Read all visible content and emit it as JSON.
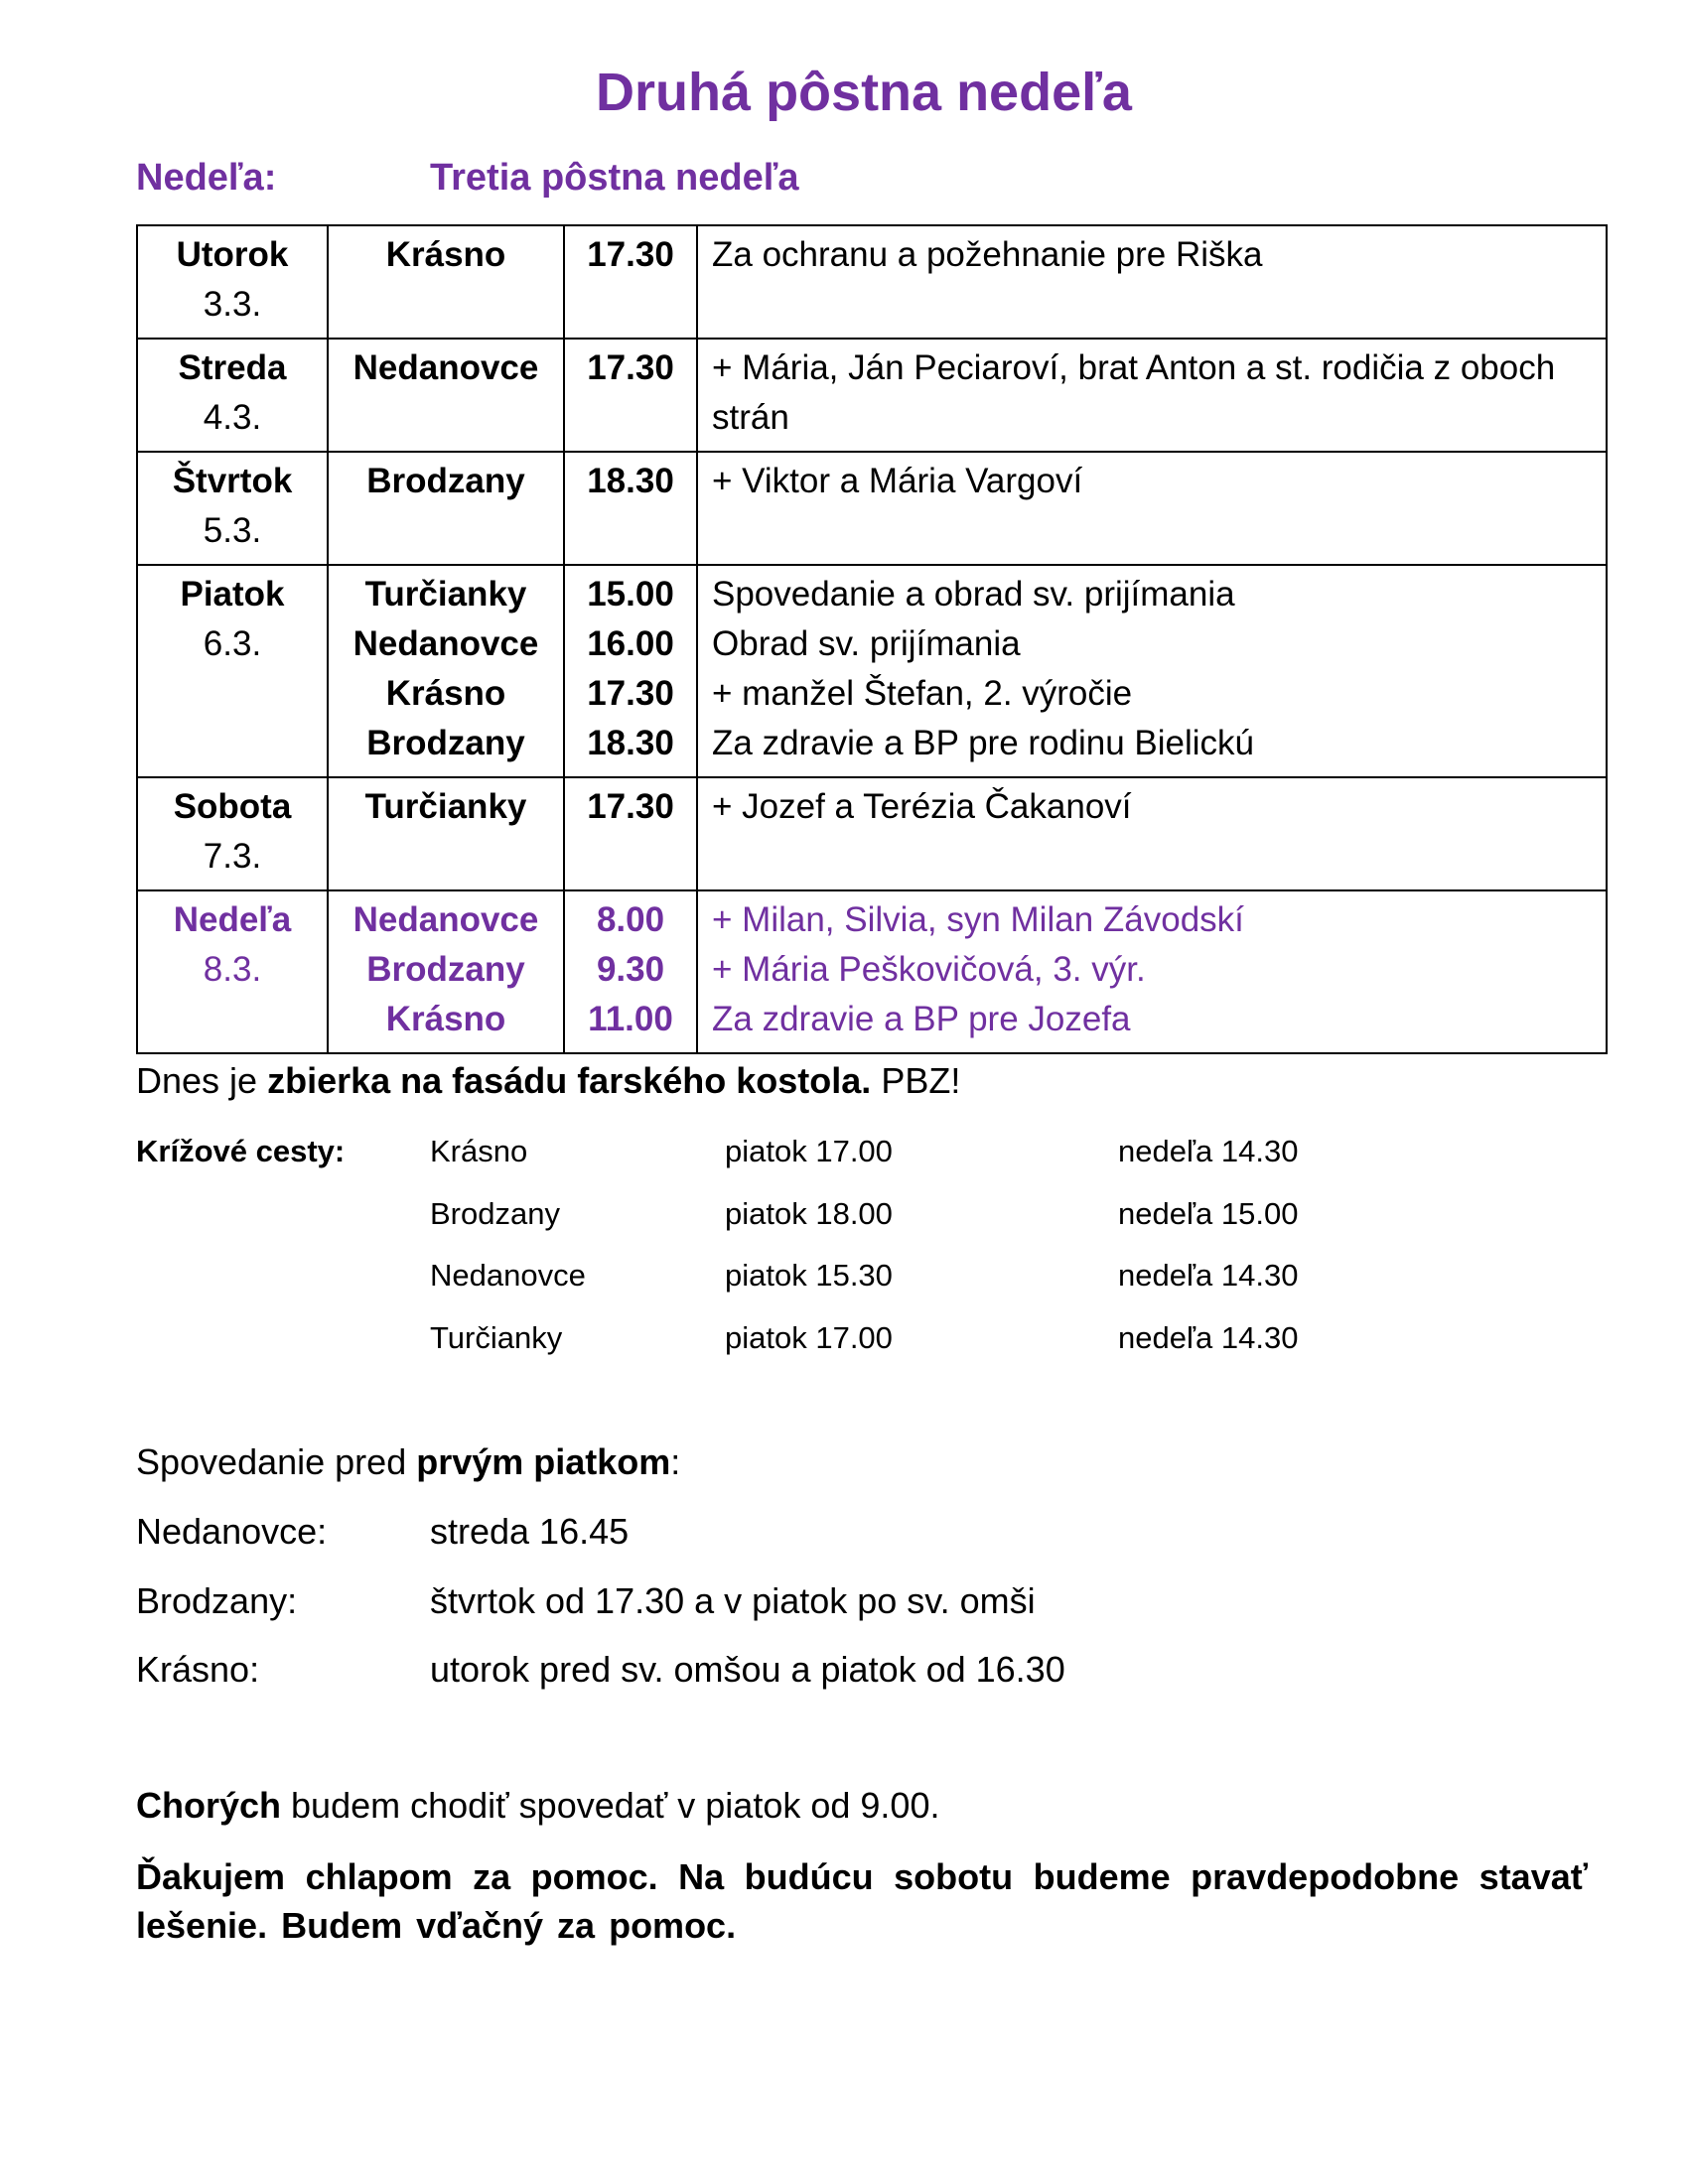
{
  "title": "Druhá pôstna nedeľa",
  "next_sunday": {
    "label": "Nedeľa:",
    "value": "Tretia pôstna nedeľa"
  },
  "schedule": [
    {
      "day": "Utorok",
      "date": "3.3.",
      "places": [
        "Krásno"
      ],
      "times": [
        "17.30"
      ],
      "intentions": [
        "Za ochranu a požehnanie pre Riška"
      ],
      "highlight": false
    },
    {
      "day": "Streda",
      "date": "4.3.",
      "places": [
        "Nedanovce"
      ],
      "times": [
        "17.30"
      ],
      "intentions": [
        "+ Mária, Ján Peciaroví, brat Anton a st. rodičia z oboch strán"
      ],
      "highlight": false
    },
    {
      "day": "Štvrtok",
      "date": "5.3.",
      "places": [
        "Brodzany"
      ],
      "times": [
        "18.30"
      ],
      "intentions": [
        "+ Viktor a Mária Vargoví"
      ],
      "highlight": false
    },
    {
      "day": "Piatok",
      "date": "6.3.",
      "places": [
        "Turčianky",
        "Nedanovce",
        "Krásno",
        "Brodzany"
      ],
      "times": [
        "15.00",
        "16.00",
        "17.30",
        "18.30"
      ],
      "intentions": [
        "Spovedanie a obrad sv. prijímania",
        "Obrad sv. prijímania",
        "+ manžel Štefan, 2. výročie",
        "Za zdravie a BP pre rodinu Bielickú"
      ],
      "highlight": false
    },
    {
      "day": "Sobota",
      "date": "7.3.",
      "places": [
        "Turčianky"
      ],
      "times": [
        "17.30"
      ],
      "intentions": [
        "+ Jozef a Terézia Čakanoví"
      ],
      "highlight": false
    },
    {
      "day": "Nedeľa",
      "date": "8.3.",
      "places": [
        "Nedanovce",
        "Brodzany",
        "Krásno"
      ],
      "times": [
        "8.00",
        "9.30",
        "11.00"
      ],
      "intentions": [
        "+ Milan, Silvia, syn Milan Závodskí",
        "+ Mária Peškovičová, 3. výr.",
        "Za zdravie a BP pre Jozefa"
      ],
      "highlight": true
    }
  ],
  "collection": {
    "pre": "Dnes je ",
    "bold": "zbierka na fasádu farského kostola.",
    "post": " PBZ!"
  },
  "stations": {
    "label": "Krížové cesty:",
    "rows": [
      {
        "place": "Krásno",
        "friday": "piatok 17.00",
        "sunday": "nedeľa 14.30"
      },
      {
        "place": "Brodzany",
        "friday": "piatok 18.00",
        "sunday": "nedeľa 15.00"
      },
      {
        "place": "Nedanovce",
        "friday": "piatok 15.30",
        "sunday": "nedeľa 14.30"
      },
      {
        "place": "Turčianky",
        "friday": "piatok 17.00",
        "sunday": "nedeľa 14.30"
      }
    ]
  },
  "confession": {
    "pre": "Spovedanie pred ",
    "bold": "prvým piatkom",
    "post": ":",
    "rows": [
      {
        "place": "Nedanovce:",
        "time": "streda 16.45"
      },
      {
        "place": "Brodzany:",
        "time": "štvrtok od 17.30 a v piatok po sv. omši"
      },
      {
        "place": "Krásno:",
        "time": "utorok pred sv. omšou a piatok od 16.30"
      }
    ]
  },
  "sick": {
    "bold": "Chorých",
    "rest": " budem chodiť spovedať v piatok od 9.00."
  },
  "thanks": "Ďakujem chlapom za pomoc. Na budúcu sobotu budeme pravdepodobne stavať lešenie. Budem vďačný za pomoc.",
  "colors": {
    "accent": "#7030a0",
    "text": "#000000"
  }
}
